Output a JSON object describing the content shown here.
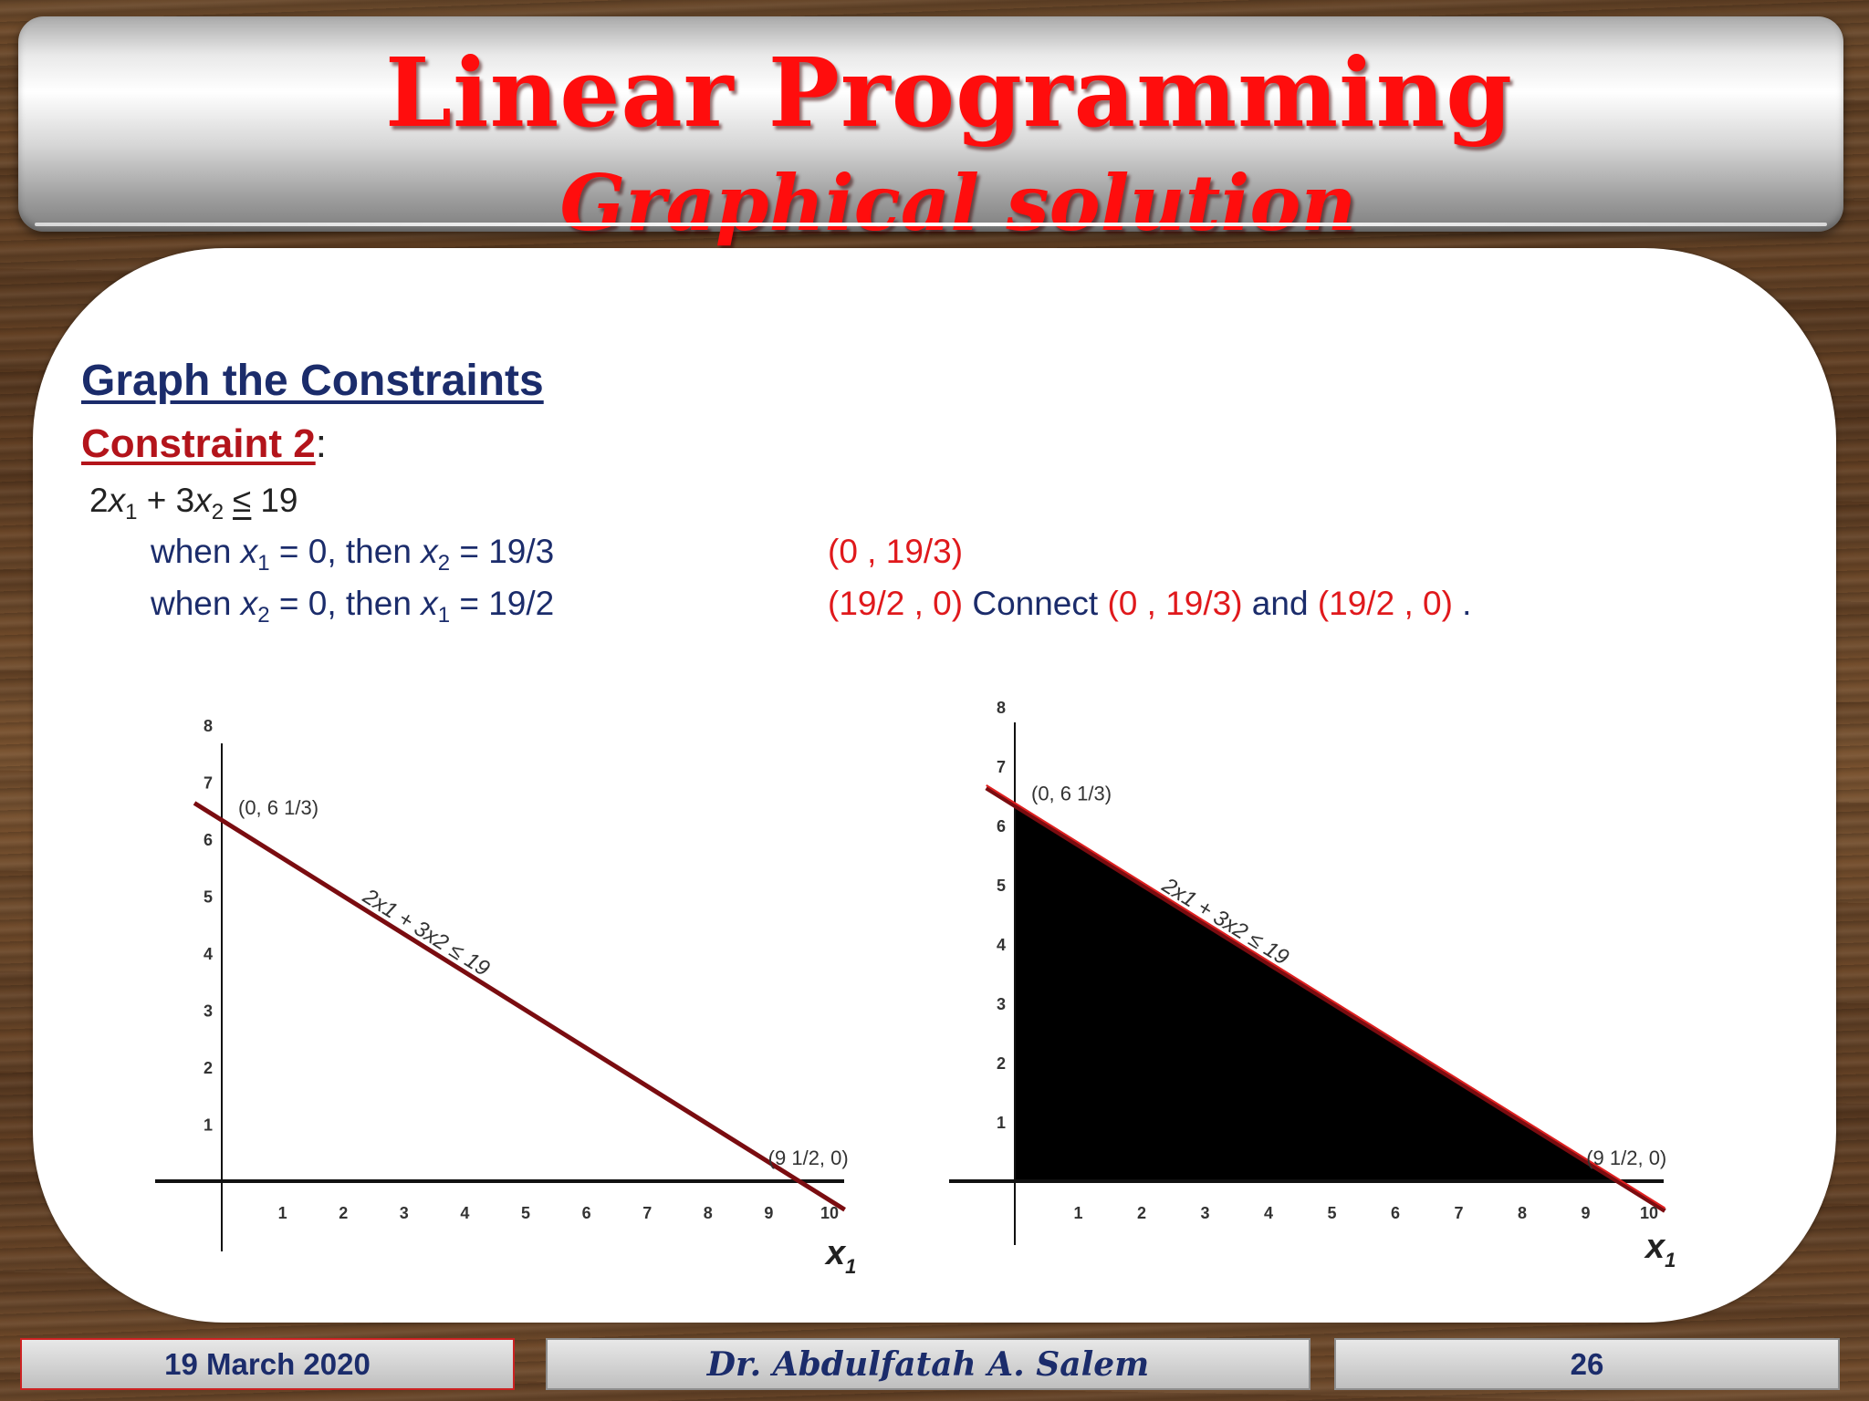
{
  "title": {
    "main": "Linear Programming",
    "sub": "Graphical solution"
  },
  "section": {
    "heading": "Graph the Constraints",
    "constraint_label": "Constraint 2",
    "constraint_colon": ":"
  },
  "equations": {
    "inequality": {
      "a": "2",
      "var1": "x",
      "sub1": "1",
      "plus": "+ 3",
      "var2": "x",
      "sub2": "2",
      "sign": "≤",
      "rhs": "19"
    },
    "row1": {
      "when": "when ",
      "var": "x",
      "sub": "1",
      "mid": " = 0, then ",
      "var2": "x",
      "sub2": "2",
      "end": " = 19/3"
    },
    "row2": {
      "when": "when ",
      "var": "x",
      "sub": "2",
      "mid": " = 0, then ",
      "var2": "x",
      "sub2": "1",
      "end": " = 19/2"
    },
    "point1": "(0 , 19/3)",
    "point2": "(19/2 , 0)",
    "connect": " Connect ",
    "and": " and ",
    "period": " ."
  },
  "graphs": {
    "tick_x": [
      "1",
      "2",
      "3",
      "4",
      "5",
      "6",
      "7",
      "8",
      "9",
      "10"
    ],
    "tick_y": [
      "1",
      "2",
      "3",
      "4",
      "5",
      "6",
      "7",
      "8"
    ],
    "label_intercept_y": "(0, 6 1/3)",
    "label_intercept_x": "(9 1/2, 0)",
    "line_label": "2x1 + 3x2 ≤ 19",
    "x_axis_label": "x",
    "x_axis_sub": "1"
  },
  "chart_data": [
    {
      "type": "line",
      "title": "",
      "xlabel": "x1",
      "ylabel": "",
      "xlim": [
        0,
        10
      ],
      "ylim": [
        0,
        8
      ],
      "series": [
        {
          "name": "2x1 + 3x2 ≤ 19",
          "x": [
            0,
            9.5
          ],
          "y": [
            6.333,
            0
          ]
        }
      ],
      "shaded": false
    },
    {
      "type": "area",
      "title": "",
      "xlabel": "x1",
      "ylabel": "",
      "xlim": [
        0,
        10
      ],
      "ylim": [
        0,
        8
      ],
      "series": [
        {
          "name": "2x1 + 3x2 ≤ 19",
          "x": [
            0,
            9.5
          ],
          "y": [
            6.333,
            0
          ]
        }
      ],
      "shaded": true,
      "fill_color": "#000000"
    }
  ],
  "footer": {
    "date": "19 March 2020",
    "author": "Dr. Abdulfatah A. Salem",
    "page": "26"
  },
  "colors": {
    "title_red": "#ff0d0d",
    "heading_navy": "#1b2c6b",
    "constraint_red": "#b3141b",
    "point_red": "#e0191c",
    "line_maroon": "#7a0c10"
  }
}
